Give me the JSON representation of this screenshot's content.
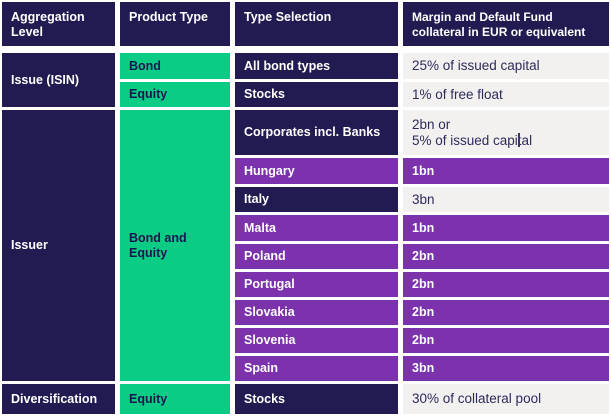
{
  "colors": {
    "header_navy": "#221b52",
    "product_green": "#0bcc85",
    "country_purple": "#7b32ac",
    "value_light": "#f2f1ef",
    "page_background": "#ffffff"
  },
  "header": {
    "aggregation_level": "Aggregation Level",
    "product_type": "Product Type",
    "type_selection": "Type Selection",
    "margin_line1": "Margin and Default Fund",
    "margin_line2": "collateral in EUR or equivalent"
  },
  "issue_section": {
    "aggregation": "Issue (ISIN)",
    "rows": [
      {
        "product": "Bond",
        "type": "All bond types",
        "value": "25% of issued capital"
      },
      {
        "product": "Equity",
        "type": "Stocks",
        "value": "1% of free float"
      }
    ]
  },
  "issuer_section": {
    "aggregation": "Issuer",
    "product": "Bond and Equity",
    "corporates": {
      "type": "Corporates incl. Banks",
      "value_line1": "2bn or",
      "value_line2": "5% of issued capital"
    },
    "countries": [
      {
        "name": "Hungary",
        "value": "1bn"
      },
      {
        "name": "Italy",
        "value": "3bn"
      },
      {
        "name": "Malta",
        "value": "1bn"
      },
      {
        "name": "Poland",
        "value": "2bn"
      },
      {
        "name": "Portugal",
        "value": "2bn"
      },
      {
        "name": "Slovakia",
        "value": "2bn"
      },
      {
        "name": "Slovenia",
        "value": "2bn"
      },
      {
        "name": "Spain",
        "value": "3bn"
      }
    ]
  },
  "diversification_section": {
    "aggregation": "Diversification",
    "product": "Equity",
    "type": "Stocks",
    "value": "30% of collateral pool"
  }
}
